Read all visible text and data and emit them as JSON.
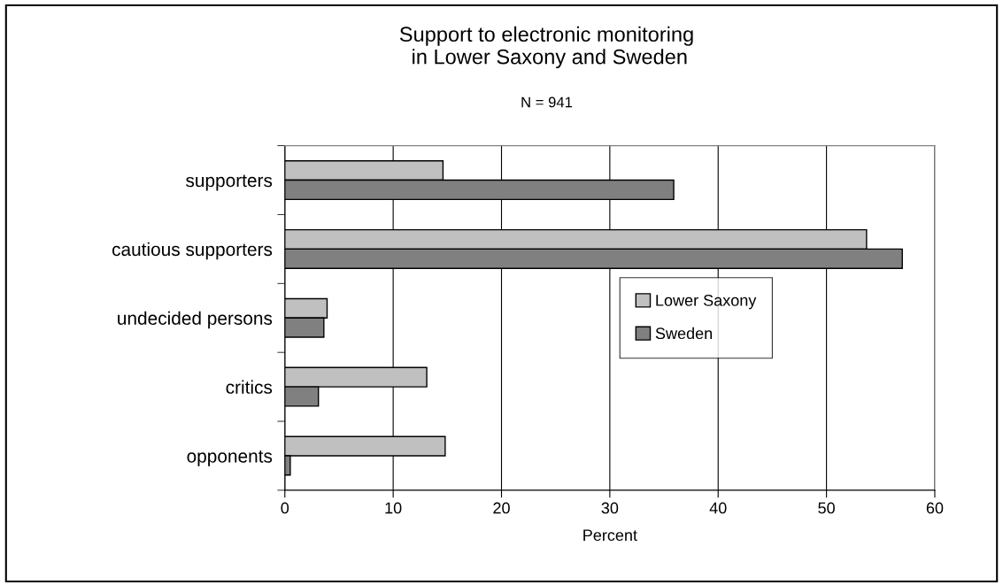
{
  "chart_data": {
    "type": "bar",
    "orientation": "horizontal",
    "title": "Support to electronic monitoring\n in Lower Saxony and Sweden",
    "subtitle": "N = 941",
    "xlabel": "Percent",
    "categories": [
      "supporters",
      "cautious supporters",
      "undecided persons",
      "critics",
      "opponents"
    ],
    "series": [
      {
        "name": "Lower Saxony",
        "color": "#c0c0c0",
        "values": [
          14.6,
          53.7,
          3.9,
          13.1,
          14.8
        ]
      },
      {
        "name": "Sweden",
        "color": "#808080",
        "values": [
          35.9,
          57.0,
          3.6,
          3.1,
          0.5
        ]
      }
    ],
    "xlim": [
      0,
      60
    ],
    "xticks": [
      0,
      10,
      20,
      30,
      40,
      50,
      60
    ],
    "grid": "x",
    "legend": "center right"
  }
}
